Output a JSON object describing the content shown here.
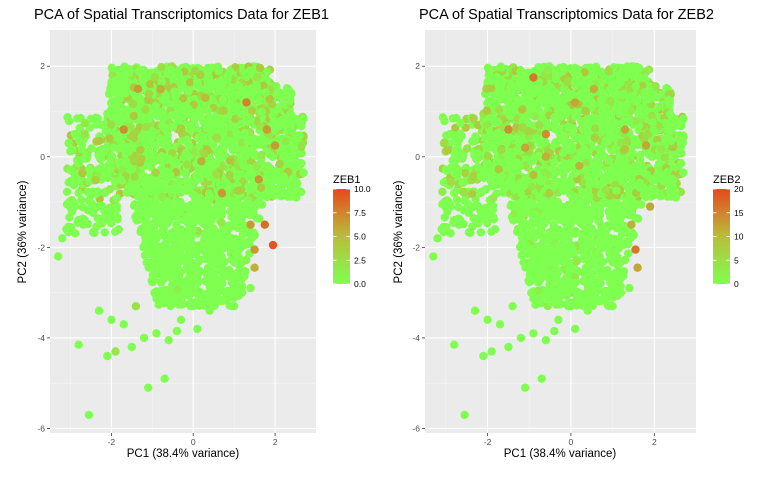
{
  "chart_data": [
    {
      "type": "scatter",
      "title": "PCA of Spatial Transcriptomics Data for ZEB1",
      "xlabel": "PC1 (38.4% variance)",
      "ylabel": "PC2 (36% variance)",
      "xlim": [
        -3.5,
        3.0
      ],
      "ylim": [
        -6.1,
        2.8
      ],
      "xticks": [
        -2,
        0,
        2
      ],
      "yticks": [
        2,
        0,
        -2,
        -4,
        -6
      ],
      "grid": true,
      "legend": {
        "title": "ZEB1",
        "placement": "right",
        "min": 0,
        "max": 10,
        "ticks": [
          10.0,
          7.5,
          5.0,
          2.5,
          0.0
        ],
        "tick_labels": [
          "10.0",
          "7.5",
          "5.0",
          "2.5",
          "0.0"
        ],
        "colors": [
          "#7FFF50",
          "#E8491E"
        ]
      },
      "n_points": 2600,
      "highlight_points": [
        {
          "x": -1.7,
          "y": 0.6,
          "value": 7
        },
        {
          "x": -1.35,
          "y": 1.5,
          "value": 6.5
        },
        {
          "x": 0.3,
          "y": 1.3,
          "value": 5
        },
        {
          "x": 1.3,
          "y": 1.2,
          "value": 7.5
        },
        {
          "x": 1.8,
          "y": 0.6,
          "value": 6.5
        },
        {
          "x": 2.0,
          "y": 0.25,
          "value": 6.5
        },
        {
          "x": 1.6,
          "y": -0.5,
          "value": 6.5
        },
        {
          "x": 0.7,
          "y": -0.8,
          "value": 6.5
        },
        {
          "x": 1.4,
          "y": -1.5,
          "value": 6.5
        },
        {
          "x": 1.75,
          "y": -1.5,
          "value": 8.5
        },
        {
          "x": 1.95,
          "y": -1.95,
          "value": 9.5
        },
        {
          "x": 1.5,
          "y": -2.05,
          "value": 6.5
        },
        {
          "x": 1.5,
          "y": -2.45,
          "value": 5.5
        },
        {
          "x": -0.8,
          "y": 1.5,
          "value": 5.5
        },
        {
          "x": 0.2,
          "y": -0.1,
          "value": 5.5
        }
      ]
    },
    {
      "type": "scatter",
      "title": "PCA of Spatial Transcriptomics Data for ZEB2",
      "xlabel": "PC1 (38.4% variance)",
      "ylabel": "PC2 (36% variance)",
      "xlim": [
        -3.5,
        3.0
      ],
      "ylim": [
        -6.1,
        2.8
      ],
      "xticks": [
        -2,
        0,
        2
      ],
      "yticks": [
        2,
        0,
        -2,
        -4,
        -6
      ],
      "grid": true,
      "legend": {
        "title": "ZEB2",
        "placement": "right",
        "min": 0,
        "max": 20,
        "ticks": [
          20,
          15,
          10,
          5,
          0
        ],
        "tick_labels": [
          "20",
          "15",
          "10",
          "5",
          "0"
        ],
        "colors": [
          "#7FFF50",
          "#E8491E"
        ]
      },
      "n_points": 2600,
      "highlight_points": [
        {
          "x": -0.9,
          "y": 1.75,
          "value": 16
        },
        {
          "x": -1.5,
          "y": 0.6,
          "value": 14
        },
        {
          "x": -1.1,
          "y": 0.2,
          "value": 12
        },
        {
          "x": -0.6,
          "y": 0.0,
          "value": 11
        },
        {
          "x": -0.6,
          "y": 0.5,
          "value": 14
        },
        {
          "x": 0.1,
          "y": 1.2,
          "value": 12
        },
        {
          "x": 0.55,
          "y": 1.5,
          "value": 11
        },
        {
          "x": 1.3,
          "y": 0.6,
          "value": 12
        },
        {
          "x": 1.8,
          "y": 0.25,
          "value": 12
        },
        {
          "x": 1.9,
          "y": -1.1,
          "value": 12
        },
        {
          "x": 1.45,
          "y": -1.5,
          "value": 11
        },
        {
          "x": 1.55,
          "y": -2.05,
          "value": 16
        },
        {
          "x": 1.6,
          "y": -2.45,
          "value": 12
        },
        {
          "x": 0.2,
          "y": -0.2,
          "value": 11
        },
        {
          "x": -0.9,
          "y": -0.4,
          "value": 10
        }
      ]
    }
  ]
}
